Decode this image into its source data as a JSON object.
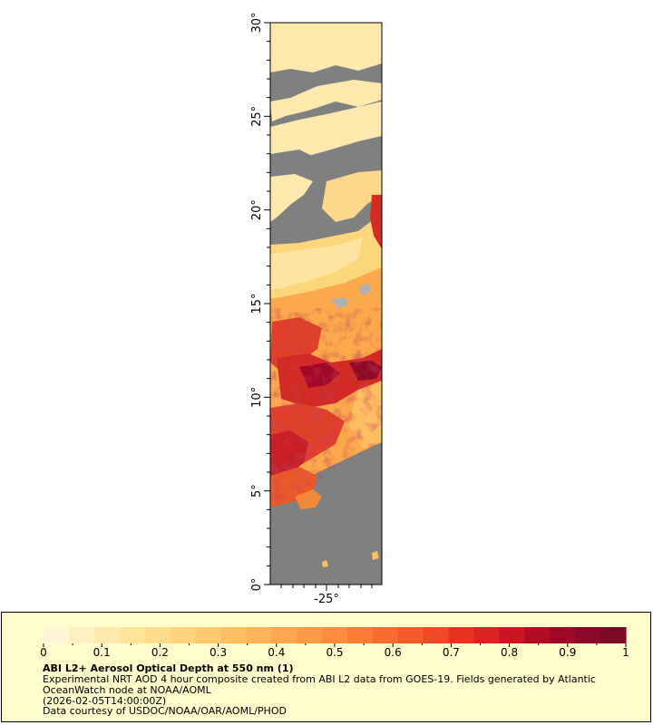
{
  "map": {
    "lat_ticks": [
      "0°",
      "5°",
      "10°",
      "15°",
      "20°",
      "25°",
      "30°"
    ],
    "lon_ticks": [
      "-25°"
    ],
    "no_data_color": "#808080",
    "layers": {
      "clear_pale": "#fde9ad",
      "cloud_low_aod": "#fdd57a",
      "moderate": "#fca94c",
      "high": "#f26a2c",
      "very_high": "#c81e27",
      "extreme": "#8c0a26",
      "missing_patch": "#b0b0b0"
    }
  },
  "legend": {
    "title": "ABI L2+ Aerosol Optical Depth at 550 nm (1)",
    "line1": "Experimental NRT AOD 4 hour composite created from ABI L2 data from GOES-19. Fields generated by Atlantic",
    "line2": "OceanWatch node at NOAA/AOML",
    "line3": "(2026-02-05T14:00:00Z)",
    "line4": "Data courtesy of USDOC/NOAA/OAR/AOML/PHOD",
    "ticks": [
      "0",
      "0.1",
      "0.2",
      "0.3",
      "0.4",
      "0.5",
      "0.6",
      "0.7",
      "0.8",
      "0.9",
      "1"
    ],
    "colorbar_range": [
      0,
      1
    ],
    "colors": [
      "#fff6d5",
      "#fff0c0",
      "#feeaae",
      "#fee39b",
      "#fedc8b",
      "#fed37c",
      "#fec96e",
      "#febf62",
      "#feb458",
      "#fea74f",
      "#fd9a46",
      "#fd8c3e",
      "#fc7c36",
      "#f96c30",
      "#f35b2a",
      "#ec4926",
      "#e23623",
      "#d62522",
      "#c61722",
      "#b30d23",
      "#9f0826",
      "#8c0828",
      "#7a0a26"
    ]
  }
}
